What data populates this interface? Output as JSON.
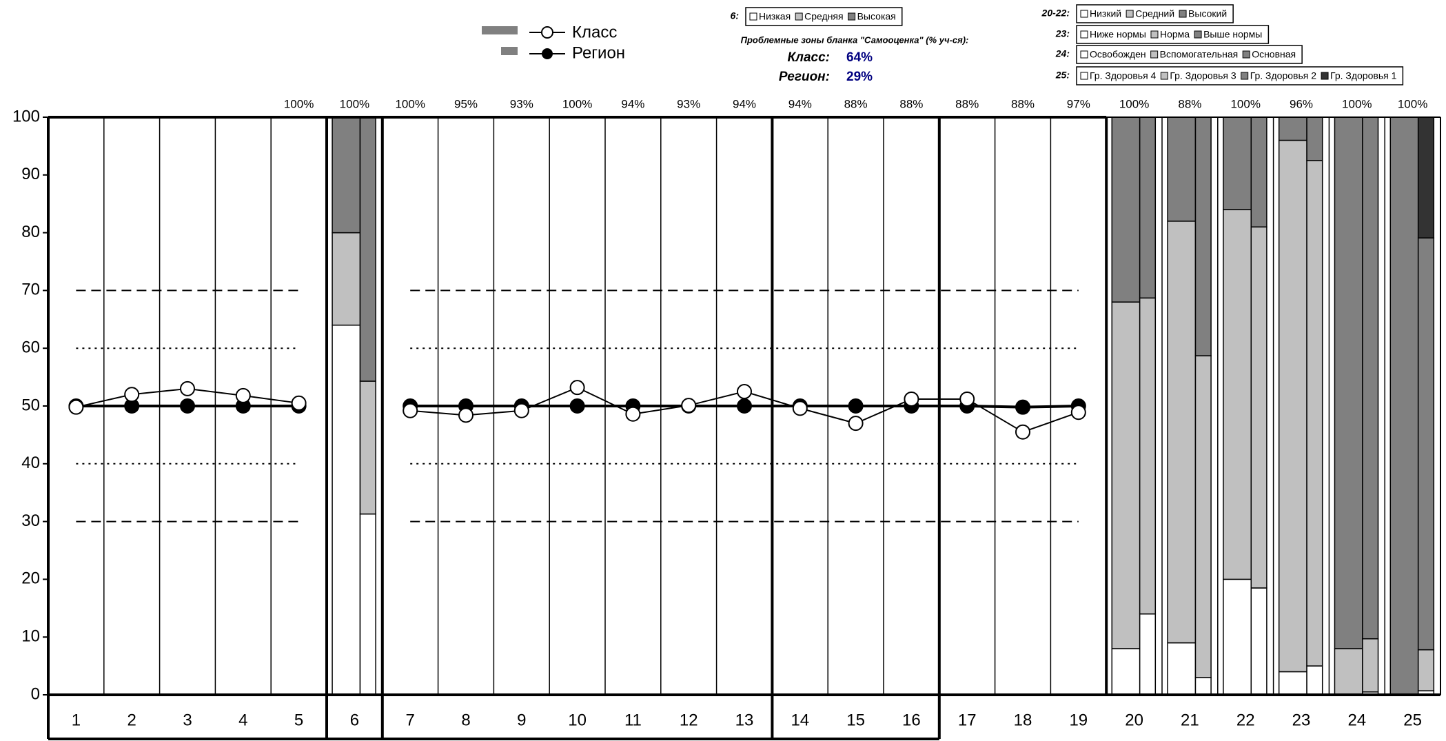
{
  "chart_data": {
    "type": "combo",
    "ylim": [
      0,
      100
    ],
    "yticks": [
      0,
      10,
      20,
      30,
      40,
      50,
      60,
      70,
      80,
      90,
      100
    ],
    "categories": [
      "1",
      "2",
      "3",
      "4",
      "5",
      "6",
      "7",
      "8",
      "9",
      "10",
      "11",
      "12",
      "13",
      "14",
      "15",
      "16",
      "17",
      "18",
      "19",
      "20",
      "21",
      "22",
      "23",
      "24",
      "25"
    ],
    "column_labels": [
      null,
      null,
      null,
      null,
      "100%",
      "100%",
      "100%",
      "95%",
      "93%",
      "100%",
      "94%",
      "93%",
      "94%",
      "94%",
      "88%",
      "88%",
      "88%",
      "88%",
      "97%",
      "100%",
      "88%",
      "100%",
      "96%",
      "100%",
      "100%"
    ],
    "series": [
      {
        "name": "Класс",
        "color": "#000000",
        "marker": "open",
        "values": [
          49.8,
          52,
          53,
          51.8,
          50.5,
          null,
          49.2,
          48.4,
          49.2,
          53.2,
          48.6,
          50.1,
          52.5,
          49.6,
          47,
          51.2,
          51.2,
          45.5,
          48.9,
          null,
          null,
          null,
          null,
          null,
          null
        ]
      },
      {
        "name": "Регион",
        "color": "#000000",
        "marker": "filled",
        "values": [
          50,
          50,
          50,
          50,
          50,
          null,
          50,
          50,
          50,
          50,
          50,
          50,
          50,
          50,
          50,
          50,
          50,
          49.8,
          50,
          null,
          null,
          null,
          null,
          null,
          null
        ]
      }
    ],
    "reference_lines": [
      {
        "value": 70,
        "style": "dashed"
      },
      {
        "value": 60,
        "style": "dotted"
      },
      {
        "value": 40,
        "style": "dotted"
      },
      {
        "value": 30,
        "style": "dashed"
      }
    ],
    "stack_colors": [
      "#ffffff",
      "#c0c0c0",
      "#808080",
      "#333333"
    ],
    "stacks": {
      "class": [
        null,
        null,
        null,
        null,
        null,
        [
          64,
          16,
          20
        ],
        null,
        null,
        null,
        null,
        null,
        null,
        null,
        null,
        null,
        null,
        null,
        null,
        null,
        [
          8,
          60,
          32
        ],
        [
          9,
          73,
          18
        ],
        [
          20,
          64,
          16
        ],
        [
          4,
          92,
          4
        ],
        [
          0,
          8,
          92
        ],
        [
          0,
          0,
          100,
          0
        ]
      ],
      "region": [
        null,
        null,
        null,
        null,
        null,
        [
          31.3,
          23,
          45.7
        ],
        null,
        null,
        null,
        null,
        null,
        null,
        null,
        null,
        null,
        null,
        null,
        null,
        null,
        [
          14,
          54.7,
          31.3
        ],
        [
          3,
          55.7,
          41.3
        ],
        [
          18.5,
          62.5,
          19
        ],
        [
          5,
          87.5,
          7.5
        ],
        [
          0.5,
          9.2,
          90.3
        ],
        [
          0.7,
          7.1,
          71.3,
          20.9
        ]
      ]
    },
    "stack_legends": [
      {
        "label": "6:",
        "items": [
          "Низкая",
          "Средняя",
          "Высокая"
        ]
      },
      {
        "label": "20-22:",
        "items": [
          "Низкий",
          "Средний",
          "Высокий"
        ]
      },
      {
        "label": "23:",
        "items": [
          "Ниже нормы",
          "Норма",
          "Выше нормы"
        ]
      },
      {
        "label": "24:",
        "items": [
          "Освобожден",
          "Вспомогательная",
          "Основная"
        ]
      },
      {
        "label": "25:",
        "items": [
          "Гр. Здоровья 4",
          "Гр. Здоровья 3",
          "Гр. Здоровья 2",
          "Гр. Здоровья 1"
        ]
      }
    ],
    "summary": {
      "title": "Проблемные зоны бланка \"Самооценка\" (% уч-ся):",
      "rows": [
        {
          "label": "Класс:",
          "value": "64%"
        },
        {
          "label": "Регион:",
          "value": "29%"
        }
      ]
    }
  }
}
